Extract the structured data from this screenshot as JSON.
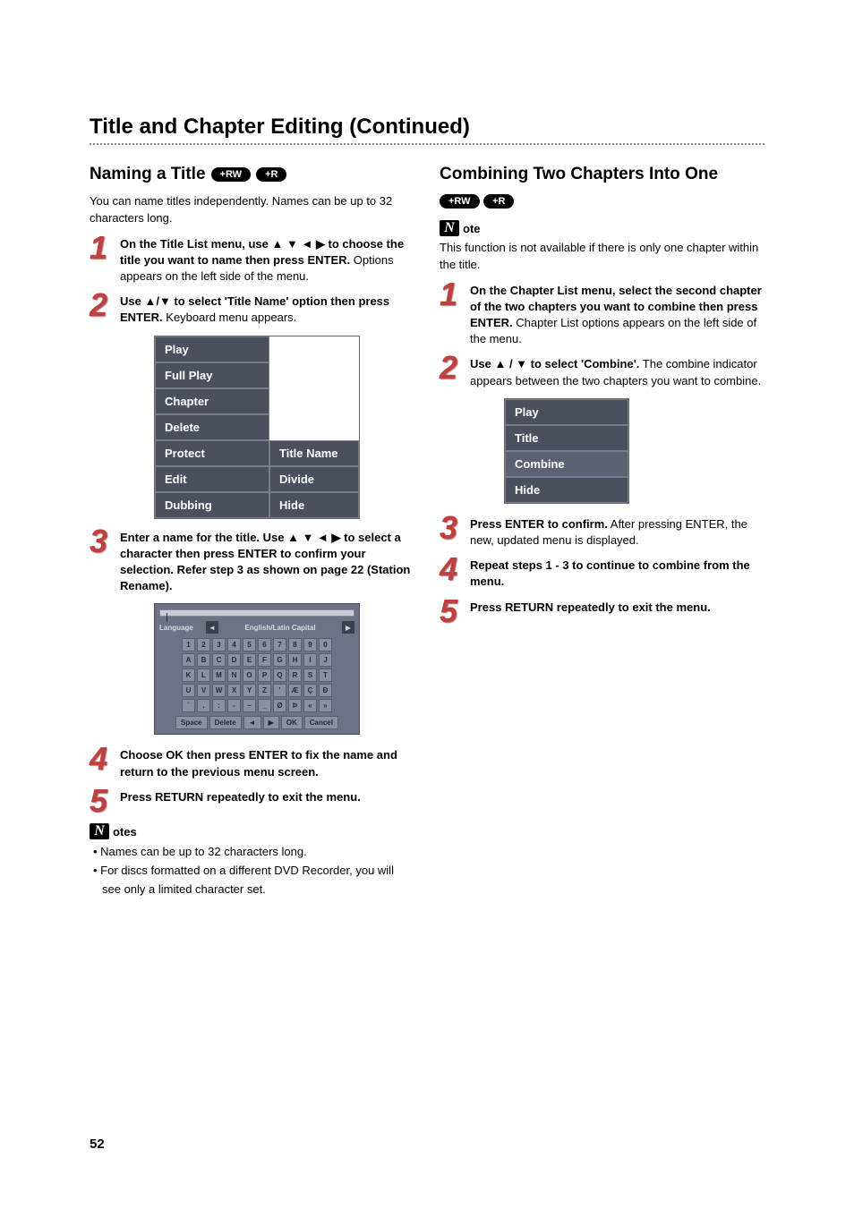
{
  "page_title": "Title and Chapter Editing (Continued)",
  "page_number": "52",
  "badge_rw": "+RW",
  "badge_r": "+R",
  "note_icon_glyph": "N",
  "left": {
    "heading": "Naming a Title",
    "intro": "You can name titles independently. Names can be up to 32 characters long.",
    "steps": [
      {
        "num": "1",
        "bold": "On the Title List menu, use ▲ ▼ ◄ ▶ to choose the title you want to name then press ENTER.",
        "plain": "\nOptions appears on the left side of the menu."
      },
      {
        "num": "2",
        "bold": "Use ▲/▼ to select 'Title Name' option then press ENTER.",
        "plain": "\nKeyboard menu appears."
      },
      {
        "num": "3",
        "bold": "Enter a name for the title. Use ▲ ▼ ◄ ▶ to select a character then press ENTER to confirm your selection. Refer step 3 as shown on page 22 (Station Rename).",
        "plain": ""
      },
      {
        "num": "4",
        "bold": "Choose OK then press ENTER to fix the name and return to the previous menu screen.",
        "plain": ""
      },
      {
        "num": "5",
        "bold": "Press RETURN repeatedly to exit the menu.",
        "plain": ""
      }
    ],
    "notes_label": "otes",
    "notes": [
      "Names can be up to 32 characters long.",
      "For discs formatted on a different DVD Recorder, you will see only a limited character set."
    ]
  },
  "menu1": {
    "rows": [
      [
        "Play"
      ],
      [
        "Full Play"
      ],
      [
        "Chapter"
      ],
      [
        "Delete"
      ],
      [
        "Protect",
        "Title Name"
      ],
      [
        "Edit",
        "Divide"
      ],
      [
        "Dubbing",
        "Hide"
      ]
    ]
  },
  "keyboard": {
    "lang_label": "Language",
    "mode": "English/Latin Capital",
    "left_arrow": "◄",
    "right_arrow": "▶",
    "rows": [
      [
        "1",
        "2",
        "3",
        "4",
        "5",
        "6",
        "7",
        "8",
        "9",
        "0"
      ],
      [
        "A",
        "B",
        "C",
        "D",
        "E",
        "F",
        "G",
        "H",
        "I",
        "J"
      ],
      [
        "K",
        "L",
        "M",
        "N",
        "O",
        "P",
        "Q",
        "R",
        "S",
        "T"
      ],
      [
        "U",
        "V",
        "W",
        "X",
        "Y",
        "Z",
        "'",
        "Æ",
        "Ç",
        "Ð"
      ],
      [
        "`",
        ".",
        ":",
        "-",
        "~",
        "_",
        "Ø",
        "Þ",
        "«",
        "»"
      ]
    ],
    "bottom": [
      "Space",
      "Delete",
      "◄",
      "▶",
      "OK",
      "Cancel"
    ]
  },
  "right": {
    "heading": "Combining Two Chapters Into One",
    "note_label": "ote",
    "note_text": "This function is not available if there is only one chapter within the title.",
    "steps": [
      {
        "num": "1",
        "bold": "On the Chapter List menu, select the second chapter of the two chapters you want to combine then press ENTER.",
        "plain": "\nChapter List options appears on the left side of the menu."
      },
      {
        "num": "2",
        "bold": "Use ▲ / ▼ to select 'Combine'.",
        "plain": "\nThe combine indicator appears between the two chapters you want to combine."
      },
      {
        "num": "3",
        "bold": "Press ENTER to confirm.",
        "plain": "\nAfter pressing ENTER, the new, updated menu is displayed."
      },
      {
        "num": "4",
        "bold": "Repeat steps 1 - 3 to continue to combine from the menu.",
        "plain": ""
      },
      {
        "num": "5",
        "bold": "Press RETURN repeatedly to exit the menu.",
        "plain": ""
      }
    ]
  },
  "menu2": {
    "rows": [
      [
        "Play"
      ],
      [
        "Title"
      ],
      [
        "Combine"
      ],
      [
        "Hide"
      ]
    ]
  }
}
